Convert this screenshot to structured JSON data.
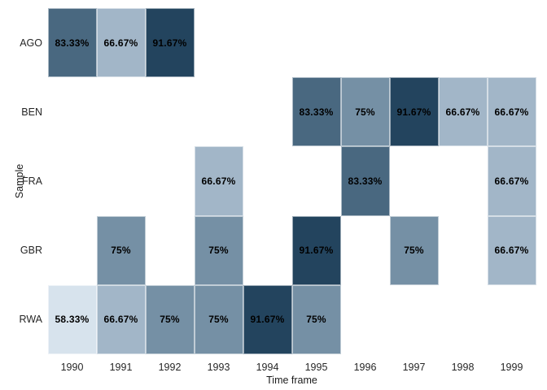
{
  "chart_data": {
    "type": "heatmap",
    "title": "",
    "xlabel": "Time frame",
    "ylabel": "Sample",
    "x_categories": [
      "1990",
      "1991",
      "1992",
      "1993",
      "1994",
      "1995",
      "1996",
      "1997",
      "1998",
      "1999"
    ],
    "y_categories": [
      "AGO",
      "BEN",
      "FRA",
      "GBR",
      "RWA"
    ],
    "legend": "none",
    "background_color": "#ffffff",
    "label_color": "#000000",
    "value_colors": {
      "58.33%": "#d7e3ed",
      "66.67%": "#a2b6c8",
      "75%": "#7590a5",
      "83.33%": "#496880",
      "91.67%": "#23445e"
    },
    "cells": [
      {
        "sample": "AGO",
        "year": "1990",
        "value": 83.33,
        "label": "83.33%"
      },
      {
        "sample": "AGO",
        "year": "1991",
        "value": 66.67,
        "label": "66.67%"
      },
      {
        "sample": "AGO",
        "year": "1992",
        "value": 91.67,
        "label": "91.67%"
      },
      {
        "sample": "BEN",
        "year": "1995",
        "value": 83.33,
        "label": "83.33%"
      },
      {
        "sample": "BEN",
        "year": "1996",
        "value": 75,
        "label": "75%"
      },
      {
        "sample": "BEN",
        "year": "1997",
        "value": 91.67,
        "label": "91.67%"
      },
      {
        "sample": "BEN",
        "year": "1998",
        "value": 66.67,
        "label": "66.67%"
      },
      {
        "sample": "BEN",
        "year": "1999",
        "value": 66.67,
        "label": "66.67%"
      },
      {
        "sample": "FRA",
        "year": "1993",
        "value": 66.67,
        "label": "66.67%"
      },
      {
        "sample": "FRA",
        "year": "1996",
        "value": 83.33,
        "label": "83.33%"
      },
      {
        "sample": "FRA",
        "year": "1999",
        "value": 66.67,
        "label": "66.67%"
      },
      {
        "sample": "GBR",
        "year": "1991",
        "value": 75,
        "label": "75%"
      },
      {
        "sample": "GBR",
        "year": "1993",
        "value": 75,
        "label": "75%"
      },
      {
        "sample": "GBR",
        "year": "1995",
        "value": 91.67,
        "label": "91.67%"
      },
      {
        "sample": "GBR",
        "year": "1997",
        "value": 75,
        "label": "75%"
      },
      {
        "sample": "GBR",
        "year": "1999",
        "value": 66.67,
        "label": "66.67%"
      },
      {
        "sample": "RWA",
        "year": "1990",
        "value": 58.33,
        "label": "58.33%"
      },
      {
        "sample": "RWA",
        "year": "1991",
        "value": 66.67,
        "label": "66.67%"
      },
      {
        "sample": "RWA",
        "year": "1992",
        "value": 75,
        "label": "75%"
      },
      {
        "sample": "RWA",
        "year": "1993",
        "value": 75,
        "label": "75%"
      },
      {
        "sample": "RWA",
        "year": "1994",
        "value": 91.67,
        "label": "91.67%"
      },
      {
        "sample": "RWA",
        "year": "1995",
        "value": 75,
        "label": "75%"
      }
    ]
  }
}
